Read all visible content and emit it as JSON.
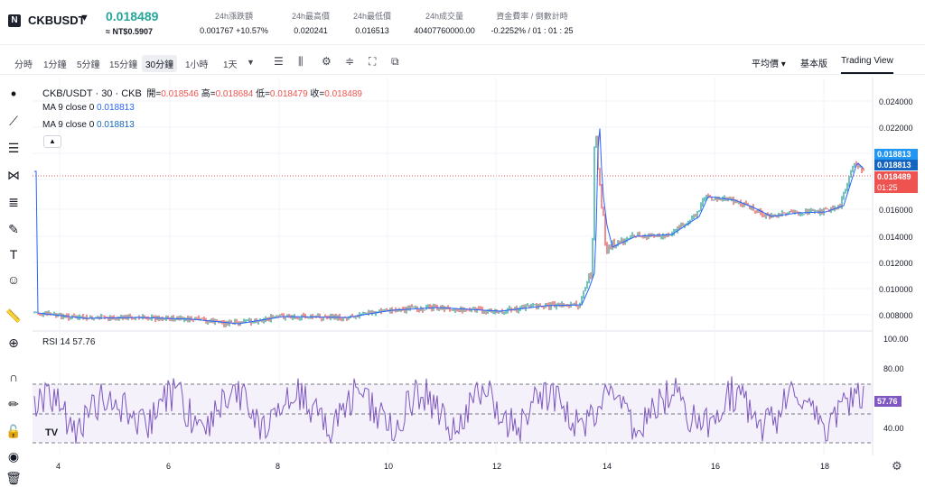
{
  "header": {
    "logo": "N",
    "symbol": "CKBUSDT",
    "price": "0.018489",
    "fiat": "≈ NT$0.5907",
    "stats": [
      {
        "label": "24h漲跌額",
        "value": "0.001767",
        "value2": "+10.57%"
      },
      {
        "label": "24h最高價",
        "value": "0.020241"
      },
      {
        "label": "24h最低價",
        "value": "0.016513"
      },
      {
        "label": "24h成交量",
        "value": "40407760000.00"
      },
      {
        "label": "資金費率 / 倒數計時",
        "value": "-0.2252% / 01 : 01 : 25"
      }
    ]
  },
  "toolbar": {
    "timeframes": [
      "分時",
      "1分鐘",
      "5分鐘",
      "15分鐘",
      "30分鐘",
      "1小時",
      "1天"
    ],
    "right": [
      "平均價",
      "基本版",
      "Trading View"
    ]
  },
  "legend": {
    "title": "CKB/USDT · 30 · CKB",
    "ohlc": [
      {
        "k": "開=",
        "v": "0.018546"
      },
      {
        "k": "高=",
        "v": "0.018684"
      },
      {
        "k": "低=",
        "v": "0.018479"
      },
      {
        "k": "收=",
        "v": "0.018489"
      }
    ],
    "ma1": {
      "label": "MA 9 close 0",
      "value": "0.018813"
    },
    "ma2": {
      "label": "MA 9 close 0",
      "value": "0.018813"
    },
    "rsi": {
      "label": "RSI 14",
      "value": "57.76"
    }
  },
  "price_axis": [
    "0.024000",
    "0.022000",
    "0.020000",
    "0.018000",
    "0.016000",
    "0.014000",
    "0.012000",
    "0.010000",
    "0.008000"
  ],
  "rsi_axis": [
    "100.00",
    "80.00",
    "60.00",
    "40.00"
  ],
  "time_axis": [
    "4",
    "6",
    "8",
    "10",
    "12",
    "14",
    "16",
    "18"
  ],
  "price_tags": {
    "ma_a": "0.018813",
    "ma_b": "0.018813",
    "last": "0.018489",
    "countdown": "01:25"
  },
  "colors": {
    "up": "#26a69a",
    "down": "#ef5350",
    "ma": "#2962ff",
    "rsi": "#7e57c2",
    "rsi_band": "#ede7f6"
  }
}
